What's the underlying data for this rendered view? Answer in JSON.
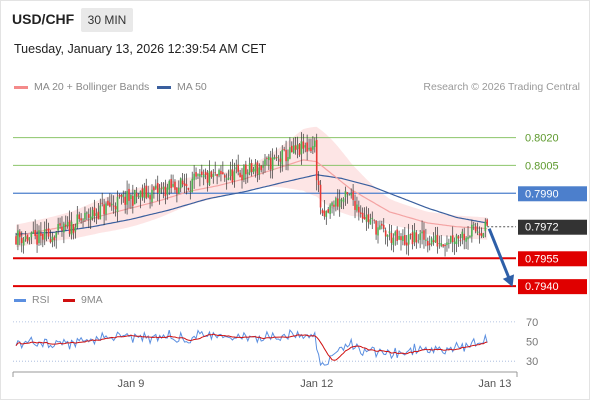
{
  "header": {
    "pair": "USD/CHF",
    "timeframe": "30 MIN",
    "timestamp": "Tuesday, January 13, 2026 12:39:54 AM CET"
  },
  "legend": {
    "bollinger_label": "MA 20 + Bollinger Bands",
    "ma50_label": "MA 50",
    "rsi_label": "RSI",
    "rsi_ma_label": "9MA",
    "copyright": "Research © 2026 Trading Central"
  },
  "colors": {
    "candle_up": "#4caf50",
    "candle_down": "#e53935",
    "bollinger_fill": "#fcdcdc",
    "ma20": "#f4a3a3",
    "ma50": "#3a5f9e",
    "support": "#e00000",
    "resistance": "#4c7fcc",
    "green_level": "#8cc46a",
    "last_price": "#333333",
    "arrow": "#2d5fa8",
    "rsi": "#5b8fe0",
    "rsi_ma": "#d01010"
  },
  "chart_data": [
    {
      "type": "candlestick",
      "title": "USD/CHF 30 MIN",
      "x_ticks": [
        {
          "label": "Jan 9",
          "bar": 60
        },
        {
          "label": "Jan 12",
          "bar": 157
        },
        {
          "label": "Jan 13",
          "bar": 250
        }
      ],
      "y_range": [
        0.7932,
        0.8037
      ],
      "levels": [
        {
          "value": 0.802,
          "label": "0.8020",
          "kind": "target"
        },
        {
          "value": 0.8005,
          "label": "0.8005",
          "kind": "target"
        },
        {
          "value": 0.799,
          "label": "0.7990",
          "kind": "resistance"
        },
        {
          "value": 0.7972,
          "label": "0.7972",
          "kind": "last"
        },
        {
          "value": 0.7955,
          "label": "0.7955",
          "kind": "support"
        },
        {
          "value": 0.794,
          "label": "0.7940",
          "kind": "support"
        }
      ],
      "forecast_arrow": {
        "from_value": 0.7972,
        "to_value": 0.794
      },
      "series": [
        {
          "name": "MA 20 + Bollinger Bands",
          "points": [
            [
              0,
              0.7967
            ],
            [
              15,
              0.797
            ],
            [
              30,
              0.7973
            ],
            [
              45,
              0.7978
            ],
            [
              60,
              0.7982
            ],
            [
              75,
              0.7986
            ],
            [
              90,
              0.7991
            ],
            [
              105,
              0.7994
            ],
            [
              120,
              0.7998
            ],
            [
              135,
              0.8003
            ],
            [
              150,
              0.8008
            ],
            [
              157,
              0.8007
            ],
            [
              175,
              0.7992
            ],
            [
              195,
              0.798
            ],
            [
              215,
              0.7974
            ],
            [
              230,
              0.7972
            ],
            [
              246,
              0.7971
            ]
          ]
        },
        {
          "name": "MA 50",
          "points": [
            [
              0,
              0.7968
            ],
            [
              20,
              0.7969
            ],
            [
              40,
              0.7972
            ],
            [
              60,
              0.7976
            ],
            [
              80,
              0.7981
            ],
            [
              100,
              0.7987
            ],
            [
              120,
              0.7991
            ],
            [
              140,
              0.7996
            ],
            [
              157,
              0.8
            ],
            [
              170,
              0.7998
            ],
            [
              185,
              0.7994
            ],
            [
              200,
              0.7988
            ],
            [
              215,
              0.7982
            ],
            [
              230,
              0.7977
            ],
            [
              246,
              0.7974
            ]
          ]
        }
      ]
    },
    {
      "type": "line",
      "title": "RSI",
      "y_ticks": [
        70,
        50,
        30
      ],
      "y_range": [
        20,
        78
      ],
      "series": [
        {
          "name": "RSI"
        },
        {
          "name": "9MA"
        }
      ]
    }
  ]
}
